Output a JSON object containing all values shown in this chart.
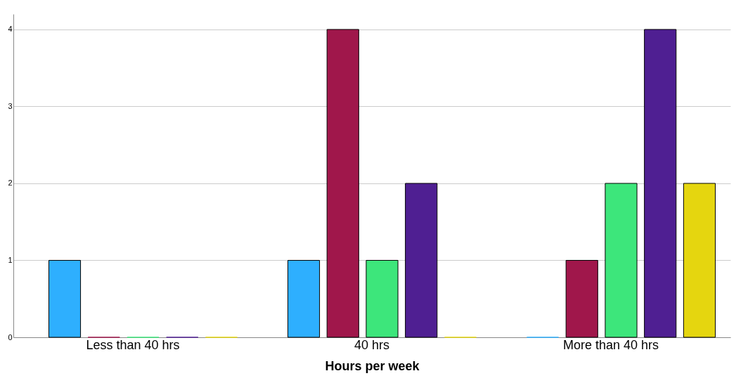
{
  "chart_data": {
    "type": "bar",
    "xlabel": "Hours per week",
    "categories": [
      "Less than 40 hrs",
      "40 hrs",
      "More than 40 hrs"
    ],
    "series": [
      {
        "color": "#2eaffe",
        "values": [
          1,
          1,
          0
        ]
      },
      {
        "color": "#a0174b",
        "values": [
          0,
          4,
          1
        ]
      },
      {
        "color": "#3de67b",
        "values": [
          0,
          1,
          2
        ]
      },
      {
        "color": "#4f1f92",
        "values": [
          0,
          2,
          4
        ]
      },
      {
        "color": "#e5d60f",
        "values": [
          0,
          0,
          2
        ]
      }
    ],
    "ylim": [
      0,
      4.2
    ],
    "yticks": [
      0,
      1,
      2,
      3,
      4
    ],
    "grid": "y"
  }
}
